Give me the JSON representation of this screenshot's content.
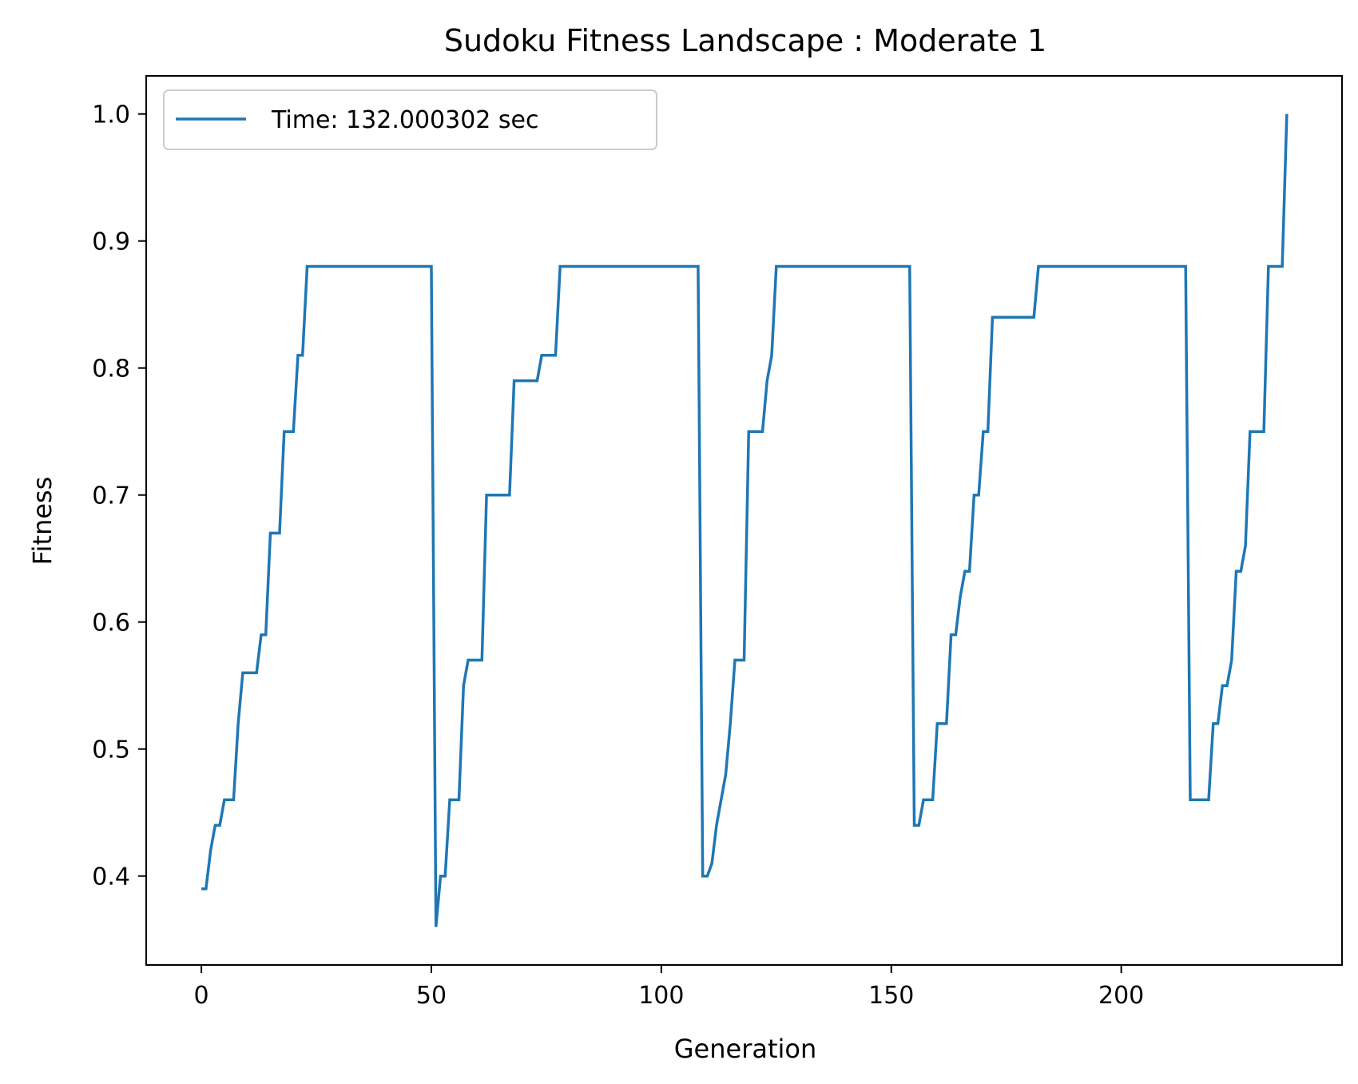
{
  "chart_data": {
    "type": "line",
    "title": "Sudoku Fitness Landscape : Moderate 1",
    "xlabel": "Generation",
    "ylabel": "Fitness",
    "xlim": [
      -12,
      248
    ],
    "ylim": [
      0.33,
      1.03
    ],
    "xticks": [
      0,
      50,
      100,
      150,
      200
    ],
    "yticks": [
      0.4,
      0.5,
      0.6,
      0.7,
      0.8,
      0.9,
      1.0
    ],
    "xtick_labels": [
      "0",
      "50",
      "100",
      "150",
      "200"
    ],
    "ytick_labels": [
      "0.4",
      "0.5",
      "0.6",
      "0.7",
      "0.8",
      "0.9",
      "1.0"
    ],
    "grid": false,
    "legend_position": "upper-left",
    "series": [
      {
        "name": "Time: 132.000302 sec",
        "color": "#1f77b4",
        "points": [
          [
            0,
            0.39
          ],
          [
            1,
            0.39
          ],
          [
            2,
            0.42
          ],
          [
            3,
            0.44
          ],
          [
            4,
            0.44
          ],
          [
            5,
            0.46
          ],
          [
            7,
            0.46
          ],
          [
            8,
            0.52
          ],
          [
            9,
            0.56
          ],
          [
            12,
            0.56
          ],
          [
            13,
            0.59
          ],
          [
            14,
            0.59
          ],
          [
            15,
            0.67
          ],
          [
            17,
            0.67
          ],
          [
            18,
            0.75
          ],
          [
            20,
            0.75
          ],
          [
            21,
            0.81
          ],
          [
            22,
            0.81
          ],
          [
            23,
            0.88
          ],
          [
            50,
            0.88
          ],
          [
            51,
            0.36
          ],
          [
            52,
            0.4
          ],
          [
            53,
            0.4
          ],
          [
            54,
            0.46
          ],
          [
            56,
            0.46
          ],
          [
            57,
            0.55
          ],
          [
            58,
            0.57
          ],
          [
            61,
            0.57
          ],
          [
            62,
            0.7
          ],
          [
            67,
            0.7
          ],
          [
            68,
            0.79
          ],
          [
            73,
            0.79
          ],
          [
            74,
            0.81
          ],
          [
            77,
            0.81
          ],
          [
            78,
            0.88
          ],
          [
            108,
            0.88
          ],
          [
            109,
            0.4
          ],
          [
            110,
            0.4
          ],
          [
            111,
            0.41
          ],
          [
            112,
            0.44
          ],
          [
            114,
            0.48
          ],
          [
            115,
            0.52
          ],
          [
            116,
            0.57
          ],
          [
            118,
            0.57
          ],
          [
            119,
            0.75
          ],
          [
            122,
            0.75
          ],
          [
            123,
            0.79
          ],
          [
            124,
            0.81
          ],
          [
            125,
            0.88
          ],
          [
            154,
            0.88
          ],
          [
            155,
            0.44
          ],
          [
            156,
            0.44
          ],
          [
            157,
            0.46
          ],
          [
            159,
            0.46
          ],
          [
            160,
            0.52
          ],
          [
            162,
            0.52
          ],
          [
            163,
            0.59
          ],
          [
            164,
            0.59
          ],
          [
            165,
            0.62
          ],
          [
            166,
            0.64
          ],
          [
            167,
            0.64
          ],
          [
            168,
            0.7
          ],
          [
            169,
            0.7
          ],
          [
            170,
            0.75
          ],
          [
            171,
            0.75
          ],
          [
            172,
            0.84
          ],
          [
            181,
            0.84
          ],
          [
            182,
            0.88
          ],
          [
            214,
            0.88
          ],
          [
            215,
            0.46
          ],
          [
            219,
            0.46
          ],
          [
            220,
            0.52
          ],
          [
            221,
            0.52
          ],
          [
            222,
            0.55
          ],
          [
            223,
            0.55
          ],
          [
            224,
            0.57
          ],
          [
            225,
            0.64
          ],
          [
            226,
            0.64
          ],
          [
            227,
            0.66
          ],
          [
            228,
            0.75
          ],
          [
            231,
            0.75
          ],
          [
            232,
            0.88
          ],
          [
            235,
            0.88
          ],
          [
            236,
            1.0
          ]
        ]
      }
    ]
  }
}
